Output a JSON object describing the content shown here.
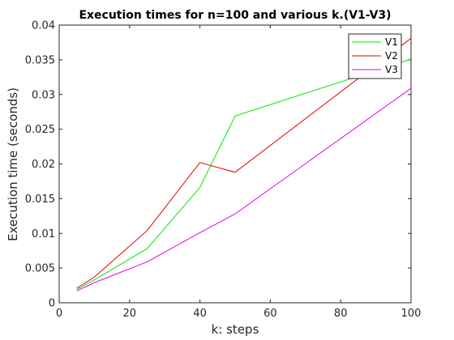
{
  "chart_data": {
    "type": "line",
    "title": "Execution times for n=100 and various k.(V1-V3)",
    "xlabel": "k: steps",
    "ylabel": "Execution time (seconds)",
    "xlim": [
      0,
      100
    ],
    "ylim": [
      0,
      0.04
    ],
    "xticks": [
      "0",
      "20",
      "40",
      "60",
      "80",
      "100"
    ],
    "yticks": [
      "0",
      "0.005",
      "0.01",
      "0.015",
      "0.02",
      "0.025",
      "0.03",
      "0.035",
      "0.04"
    ],
    "grid": false,
    "legend_position": "top-right",
    "x": [
      5,
      10,
      25,
      40,
      50,
      100
    ],
    "series": [
      {
        "name": "V1",
        "color": "#00e600",
        "values": [
          0.0019,
          0.0033,
          0.0078,
          0.0166,
          0.0269,
          0.0351
        ]
      },
      {
        "name": "V2",
        "color": "#e60000",
        "values": [
          0.0021,
          0.0037,
          0.0104,
          0.0202,
          0.0188,
          0.0381
        ]
      },
      {
        "name": "V3",
        "color": "#e600e6",
        "values": [
          0.0017,
          0.0029,
          0.0059,
          0.0101,
          0.0128,
          0.0309
        ]
      }
    ]
  }
}
